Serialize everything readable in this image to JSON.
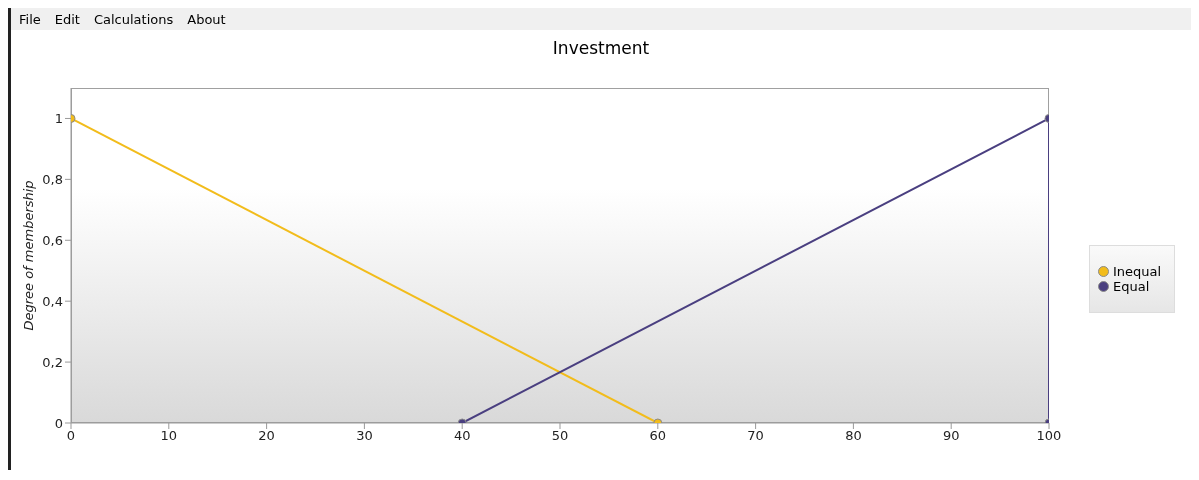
{
  "chart_data": {
    "type": "line",
    "title": "Investment",
    "ylabel": "Degree of membership",
    "annotations": [
      "File",
      "Edit",
      "Calculations",
      "About"
    ],
    "xlim": [
      0,
      100
    ],
    "xticks": [
      0,
      10,
      20,
      30,
      40,
      50,
      60,
      70,
      80,
      90,
      100
    ],
    "ylim": [
      0,
      1.1
    ],
    "yticks": [
      0,
      {
        "value": 0.2,
        "label": "0,2"
      },
      {
        "value": 0.4,
        "label": "0,4"
      },
      {
        "value": 0.6,
        "label": "0,6"
      },
      {
        "value": 0.8,
        "label": "0,8"
      },
      1
    ],
    "grid": false,
    "legend": "right",
    "marker": "circle",
    "line_style": "solid",
    "series": [
      {
        "name": "Inequal",
        "color": "#f2bc1b",
        "x": [
          0,
          60
        ],
        "values": [
          1,
          0
        ]
      },
      {
        "name": "Equal",
        "color": "#4a3f80",
        "x": [
          40,
          100,
          100
        ],
        "values": [
          0,
          1,
          0
        ]
      }
    ]
  }
}
